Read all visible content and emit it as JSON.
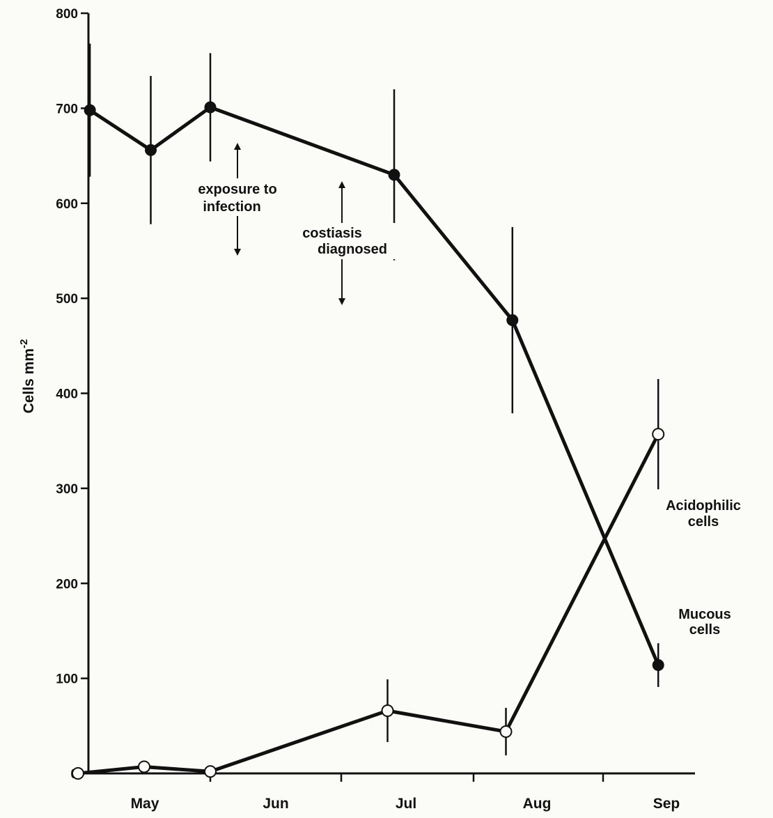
{
  "chart_data": {
    "type": "line",
    "title": "",
    "xlabel": "",
    "ylabel": "Cells mm",
    "ylabel_superscript": "-2",
    "ylim": [
      0,
      800
    ],
    "yticks": [
      0,
      100,
      200,
      300,
      400,
      500,
      600,
      700,
      800
    ],
    "month_labels": [
      "May",
      "Jun",
      "Jul",
      "Aug",
      "Sep"
    ],
    "grid": false,
    "series": [
      {
        "name": "Mucous cells",
        "marker": "filled",
        "color": "#111111",
        "points": [
          {
            "x": 0.09,
            "y": 698,
            "err": 70
          },
          {
            "x": 0.55,
            "y": 656,
            "err": 78
          },
          {
            "x": 1.0,
            "y": 701,
            "err": 57
          },
          {
            "x": 2.4,
            "y": 630,
            "err": 90
          },
          {
            "x": 3.3,
            "y": 477,
            "err": 98
          },
          {
            "x": 4.6,
            "y": 114,
            "err": 23
          }
        ]
      },
      {
        "name": "Acidophilic cells",
        "marker": "open",
        "color": "#111111",
        "points": [
          {
            "x": 0.0,
            "y": 0,
            "err": 0
          },
          {
            "x": 0.5,
            "y": 7,
            "err": 0
          },
          {
            "x": 1.0,
            "y": 2,
            "err": 0
          },
          {
            "x": 2.35,
            "y": 66,
            "err": 33
          },
          {
            "x": 3.25,
            "y": 44,
            "err": 25
          },
          {
            "x": 4.6,
            "y": 357,
            "err": 58
          }
        ]
      }
    ],
    "series_labels": {
      "mucous_line1": "Mucous",
      "mucous_line2": "cells",
      "acid_line1": "Acidophilic",
      "acid_line2": "cells"
    },
    "annotations": {
      "exposure_line1": "exposure to",
      "exposure_line2": "infection",
      "costiasis_line1": "costiasis",
      "costiasis_line2": "diagnosed"
    }
  }
}
